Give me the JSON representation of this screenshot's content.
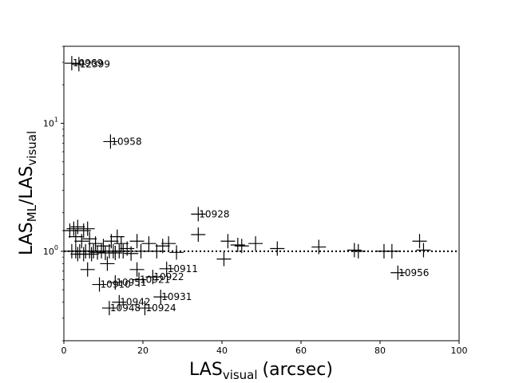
{
  "chart_data": {
    "type": "scatter",
    "marker": "plus",
    "xlabel": "LAS",
    "xlabel_sub": "visual",
    "xlabel_unit": "(arcsec)",
    "ylabel": "LAS",
    "ylabel_sub": "ML",
    "ylabel_mid": "/LAS",
    "ylabel_sub2": "visual",
    "xlim": [
      0,
      100
    ],
    "ylim": [
      0.2,
      40
    ],
    "yscale": "log",
    "x_ticks": [
      {
        "value": 0,
        "label": "0"
      },
      {
        "value": 20,
        "label": "20"
      },
      {
        "value": 40,
        "label": "40"
      },
      {
        "value": 60,
        "label": "60"
      },
      {
        "value": 80,
        "label": "80"
      },
      {
        "value": 100,
        "label": "100"
      }
    ],
    "y_ticks": [
      {
        "value": 1,
        "base": "10",
        "exp": "0"
      },
      {
        "value": 10,
        "base": "10",
        "exp": "1"
      }
    ],
    "reference_line": {
      "y": 1.0,
      "style": "dotted"
    },
    "points": [
      {
        "x": 2.0,
        "y": 29.5
      },
      {
        "x": 3.8,
        "y": 29.0
      },
      {
        "x": 11.8,
        "y": 7.2
      },
      {
        "x": 34.0,
        "y": 1.95
      },
      {
        "x": 84.5,
        "y": 0.68
      },
      {
        "x": 26.0,
        "y": 0.73
      },
      {
        "x": 22.5,
        "y": 0.63
      },
      {
        "x": 19.0,
        "y": 0.6
      },
      {
        "x": 13.0,
        "y": 0.57
      },
      {
        "x": 9.0,
        "y": 0.55
      },
      {
        "x": 24.5,
        "y": 0.44
      },
      {
        "x": 14.0,
        "y": 0.4
      },
      {
        "x": 11.5,
        "y": 0.36
      },
      {
        "x": 20.5,
        "y": 0.36
      },
      {
        "x": 1.5,
        "y": 1.45
      },
      {
        "x": 2.5,
        "y": 1.5
      },
      {
        "x": 3.5,
        "y": 1.55
      },
      {
        "x": 5.0,
        "y": 1.45
      },
      {
        "x": 6.0,
        "y": 1.5
      },
      {
        "x": 3.0,
        "y": 1.3
      },
      {
        "x": 4.5,
        "y": 1.2
      },
      {
        "x": 6.5,
        "y": 1.25
      },
      {
        "x": 8.0,
        "y": 1.15
      },
      {
        "x": 10.0,
        "y": 1.1
      },
      {
        "x": 12.0,
        "y": 1.2
      },
      {
        "x": 13.5,
        "y": 1.3
      },
      {
        "x": 14.5,
        "y": 1.15
      },
      {
        "x": 16.0,
        "y": 1.05
      },
      {
        "x": 18.5,
        "y": 1.2
      },
      {
        "x": 21.5,
        "y": 1.15
      },
      {
        "x": 25.0,
        "y": 1.1
      },
      {
        "x": 26.5,
        "y": 1.15
      },
      {
        "x": 34.0,
        "y": 1.35
      },
      {
        "x": 41.5,
        "y": 1.2
      },
      {
        "x": 44.0,
        "y": 1.12
      },
      {
        "x": 45.0,
        "y": 1.1
      },
      {
        "x": 48.5,
        "y": 1.15
      },
      {
        "x": 54.0,
        "y": 1.05
      },
      {
        "x": 64.5,
        "y": 1.08
      },
      {
        "x": 73.5,
        "y": 1.02
      },
      {
        "x": 74.5,
        "y": 1.0
      },
      {
        "x": 81.0,
        "y": 1.0
      },
      {
        "x": 83.0,
        "y": 1.0
      },
      {
        "x": 90.0,
        "y": 1.2
      },
      {
        "x": 91.0,
        "y": 1.02
      },
      {
        "x": 40.5,
        "y": 0.87
      },
      {
        "x": 11.0,
        "y": 0.8
      },
      {
        "x": 6.0,
        "y": 0.72
      },
      {
        "x": 18.5,
        "y": 0.72
      },
      {
        "x": 28.5,
        "y": 0.98
      },
      {
        "x": 2.0,
        "y": 1.0
      },
      {
        "x": 3.0,
        "y": 1.0
      },
      {
        "x": 3.5,
        "y": 0.95
      },
      {
        "x": 4.0,
        "y": 1.0
      },
      {
        "x": 5.0,
        "y": 0.95
      },
      {
        "x": 5.5,
        "y": 1.0
      },
      {
        "x": 6.5,
        "y": 1.0
      },
      {
        "x": 7.0,
        "y": 0.95
      },
      {
        "x": 7.5,
        "y": 1.0
      },
      {
        "x": 8.5,
        "y": 0.98
      },
      {
        "x": 9.5,
        "y": 1.0
      },
      {
        "x": 10.5,
        "y": 0.97
      },
      {
        "x": 11.5,
        "y": 1.0
      },
      {
        "x": 12.5,
        "y": 1.0
      },
      {
        "x": 13.0,
        "y": 0.97
      },
      {
        "x": 14.0,
        "y": 1.0
      },
      {
        "x": 15.0,
        "y": 1.0
      },
      {
        "x": 17.0,
        "y": 0.96
      },
      {
        "x": 19.5,
        "y": 1.0
      },
      {
        "x": 23.5,
        "y": 1.0
      }
    ],
    "annotations": [
      {
        "x": 2.0,
        "y": 29.5,
        "text": "10969"
      },
      {
        "x": 3.8,
        "y": 29.0,
        "text": "12399"
      },
      {
        "x": 11.8,
        "y": 7.2,
        "text": "10958"
      },
      {
        "x": 34.0,
        "y": 1.95,
        "text": "10928"
      },
      {
        "x": 84.5,
        "y": 0.68,
        "text": "10956"
      },
      {
        "x": 26.0,
        "y": 0.73,
        "text": "10911"
      },
      {
        "x": 22.5,
        "y": 0.63,
        "text": "10922"
      },
      {
        "x": 19.0,
        "y": 0.6,
        "text": "10921"
      },
      {
        "x": 13.0,
        "y": 0.57,
        "text": "10951"
      },
      {
        "x": 9.0,
        "y": 0.55,
        "text": "10910"
      },
      {
        "x": 24.5,
        "y": 0.44,
        "text": "10931"
      },
      {
        "x": 14.0,
        "y": 0.4,
        "text": "10942"
      },
      {
        "x": 11.5,
        "y": 0.36,
        "text": "10948"
      },
      {
        "x": 20.5,
        "y": 0.36,
        "text": "10924"
      }
    ]
  }
}
